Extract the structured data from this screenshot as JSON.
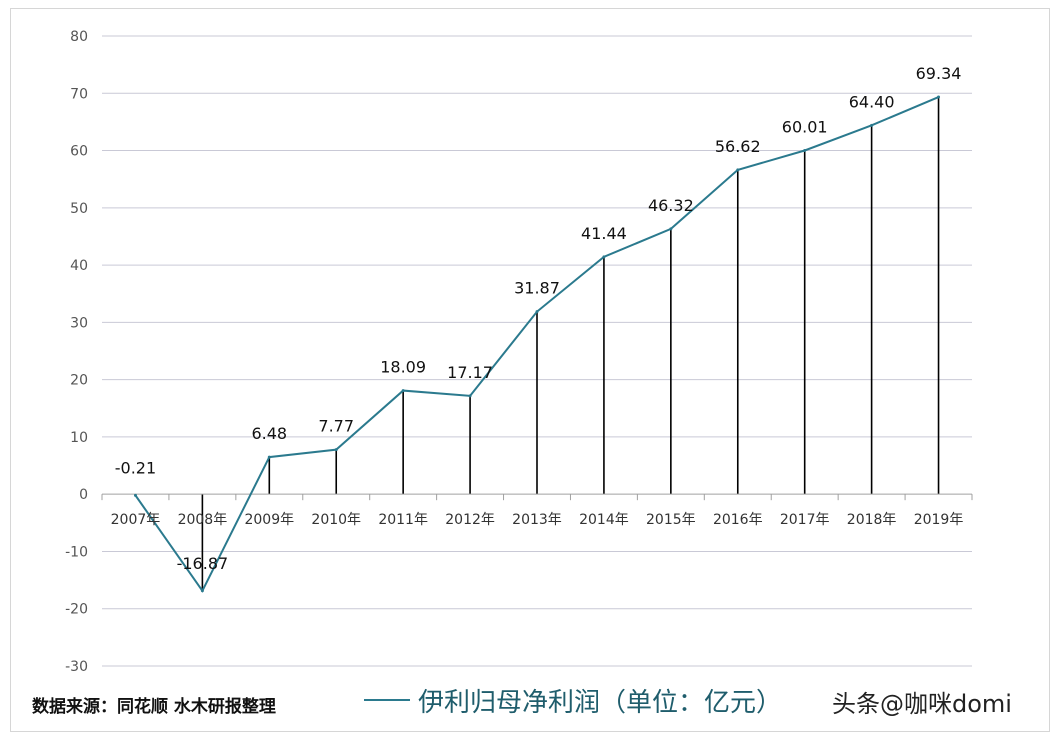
{
  "chart_data": {
    "type": "line",
    "categories": [
      "2007年",
      "2008年",
      "2009年",
      "2010年",
      "2011年",
      "2012年",
      "2013年",
      "2014年",
      "2015年",
      "2016年",
      "2017年",
      "2018年",
      "2019年"
    ],
    "series": [
      {
        "name": "伊利归母净利润（单位：亿元）",
        "values": [
          -0.21,
          -16.87,
          6.48,
          7.77,
          18.09,
          17.17,
          31.87,
          41.44,
          46.32,
          56.62,
          60.01,
          64.4,
          69.34
        ],
        "labels": [
          "-0.21",
          "-16.87",
          "6.48",
          "7.77",
          "18.09",
          "17.17",
          "31.87",
          "41.44",
          "46.32",
          "56.62",
          "60.01",
          "64.40",
          "69.34"
        ]
      }
    ],
    "ylim": [
      -30,
      80
    ],
    "yticks": [
      "80",
      "70",
      "60",
      "50",
      "40",
      "30",
      "20",
      "10",
      "0",
      "-10",
      "-20",
      "-30"
    ],
    "ytick_values": [
      80,
      70,
      60,
      50,
      40,
      30,
      20,
      10,
      0,
      -10,
      -20,
      -30
    ],
    "grid": true,
    "drop_lines": true,
    "legend_position": "bottom",
    "line_color": "#2b7a8e"
  },
  "footer": {
    "source": "数据来源：同花顺  水木研报整理"
  },
  "watermark": "头条@咖咪domi"
}
